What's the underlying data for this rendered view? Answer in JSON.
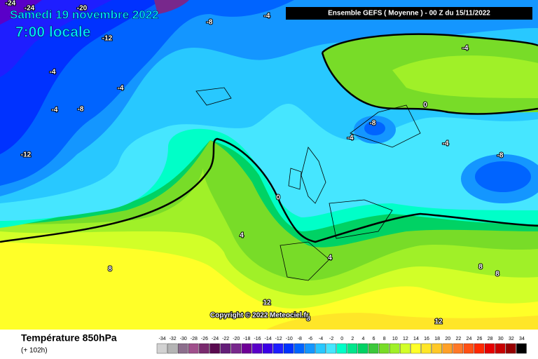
{
  "header": {
    "date": "Samedi 19 novembre 2022",
    "time": "7:00 locale",
    "model": "Ensemble GEFS  ( Moyenne )  - 00 Z du 15/11/2022"
  },
  "copyright": "Copyright © 2022 Meteociel.fr",
  "footer": {
    "title": "Température 850hPa",
    "lead": "(+ 102h)"
  },
  "contour_labels": [
    -24,
    -24,
    -20,
    -12,
    -8,
    -4,
    -4,
    -4,
    -4,
    -8,
    -12,
    -4,
    0,
    -8,
    -4,
    -4,
    -8,
    0,
    4,
    4,
    8,
    8,
    12,
    8,
    8,
    12
  ],
  "scale": {
    "values": [
      -34,
      -32,
      -30,
      -28,
      -26,
      -24,
      -22,
      -20,
      -18,
      -16,
      -14,
      -12,
      -10,
      -8,
      -6,
      -4,
      -2,
      0,
      2,
      4,
      6,
      8,
      10,
      12,
      14,
      16,
      18,
      20,
      22,
      24,
      26,
      28,
      30,
      32,
      34
    ],
    "colors": [
      "#d2d2d2",
      "#b4b4b4",
      "#8c6e8c",
      "#a0508c",
      "#7a2a6e",
      "#5a0a50",
      "#641e78",
      "#78288c",
      "#6e0096",
      "#5a00c8",
      "#3c00e6",
      "#1e1eff",
      "#0032ff",
      "#0064ff",
      "#1496ff",
      "#28c8ff",
      "#46e6ff",
      "#00ffc8",
      "#00e68c",
      "#00d264",
      "#3cc83c",
      "#78dc28",
      "#a0f028",
      "#d2ff28",
      "#ffff28",
      "#ffe628",
      "#ffc828",
      "#ffa028",
      "#ff7828",
      "#ff5014",
      "#ff2800",
      "#e60000",
      "#c80000",
      "#960000",
      "#000000"
    ]
  }
}
